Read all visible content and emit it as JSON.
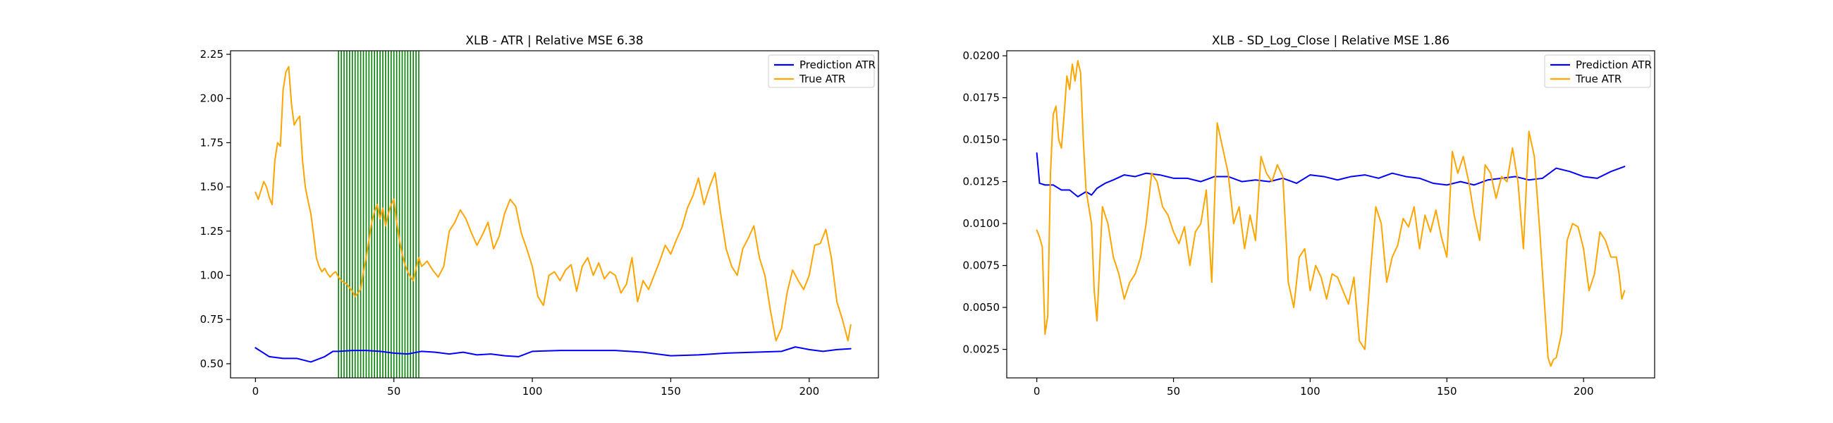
{
  "chart_data": [
    {
      "type": "line",
      "title": "XLB - ATR | Relative MSE 6.38",
      "xlabel": "",
      "ylabel": "",
      "xlim": [
        -9,
        225
      ],
      "ylim": [
        0.42,
        2.27
      ],
      "xticks": [
        0,
        50,
        100,
        150,
        200
      ],
      "xtick_labels": [
        "0",
        "50",
        "100",
        "150",
        "200"
      ],
      "yticks": [
        0.5,
        0.75,
        1.0,
        1.25,
        1.5,
        1.75,
        2.0,
        2.25
      ],
      "ytick_labels": [
        "0.50",
        "0.75",
        "1.00",
        "1.25",
        "1.50",
        "1.75",
        "2.00",
        "2.25"
      ],
      "grid": false,
      "legend_position": "top-right",
      "highlight_vlines": {
        "color": "#008000",
        "x_start": 30,
        "x_end": 59,
        "step": 1
      },
      "series": [
        {
          "name": "Prediction ATR",
          "color": "#0000ff",
          "x": [
            0,
            5,
            10,
            15,
            20,
            25,
            28,
            30,
            35,
            40,
            45,
            50,
            55,
            60,
            65,
            70,
            75,
            80,
            85,
            90,
            95,
            100,
            110,
            120,
            130,
            140,
            150,
            160,
            170,
            180,
            190,
            195,
            200,
            205,
            210,
            215
          ],
          "y": [
            0.59,
            0.54,
            0.53,
            0.53,
            0.51,
            0.54,
            0.57,
            0.57,
            0.575,
            0.575,
            0.57,
            0.56,
            0.555,
            0.57,
            0.565,
            0.555,
            0.565,
            0.55,
            0.555,
            0.545,
            0.54,
            0.57,
            0.575,
            0.575,
            0.575,
            0.565,
            0.545,
            0.55,
            0.56,
            0.565,
            0.57,
            0.595,
            0.58,
            0.57,
            0.58,
            0.585
          ]
        },
        {
          "name": "True ATR",
          "color": "#ffa500",
          "x": [
            0,
            1,
            2,
            3,
            4,
            5,
            6,
            7,
            8,
            9,
            10,
            11,
            12,
            13,
            14,
            15,
            16,
            17,
            18,
            19,
            20,
            21,
            22,
            23,
            24,
            25,
            26,
            27,
            28,
            29,
            30,
            31,
            32,
            33,
            34,
            35,
            36,
            37,
            38,
            39,
            40,
            41,
            42,
            43,
            44,
            45,
            46,
            47,
            48,
            49,
            50,
            51,
            52,
            53,
            54,
            55,
            56,
            57,
            58,
            59,
            60,
            62,
            64,
            66,
            68,
            70,
            72,
            74,
            76,
            78,
            80,
            82,
            84,
            86,
            88,
            90,
            92,
            94,
            96,
            98,
            100,
            102,
            104,
            106,
            108,
            110,
            112,
            114,
            116,
            118,
            120,
            122,
            124,
            126,
            128,
            130,
            132,
            134,
            136,
            138,
            140,
            142,
            144,
            146,
            148,
            150,
            152,
            154,
            156,
            158,
            160,
            162,
            164,
            166,
            168,
            170,
            172,
            174,
            176,
            178,
            180,
            182,
            184,
            186,
            188,
            190,
            192,
            194,
            196,
            198,
            200,
            202,
            204,
            206,
            208,
            210,
            212,
            214,
            215
          ],
          "y": [
            1.47,
            1.43,
            1.48,
            1.53,
            1.5,
            1.44,
            1.4,
            1.65,
            1.75,
            1.73,
            2.05,
            2.15,
            2.18,
            1.97,
            1.85,
            1.88,
            1.9,
            1.65,
            1.5,
            1.42,
            1.35,
            1.23,
            1.1,
            1.05,
            1.02,
            1.04,
            1.01,
            0.99,
            1.01,
            1.02,
            0.99,
            0.97,
            0.96,
            0.95,
            0.93,
            0.91,
            0.88,
            0.9,
            0.92,
            1.02,
            1.1,
            1.2,
            1.3,
            1.36,
            1.4,
            1.32,
            1.38,
            1.28,
            1.35,
            1.4,
            1.43,
            1.3,
            1.2,
            1.12,
            1.06,
            1.02,
            0.99,
            0.97,
            1.04,
            1.1,
            1.05,
            1.08,
            1.03,
            0.99,
            1.05,
            1.25,
            1.3,
            1.37,
            1.32,
            1.24,
            1.17,
            1.23,
            1.3,
            1.15,
            1.22,
            1.35,
            1.43,
            1.39,
            1.24,
            1.15,
            1.05,
            0.88,
            0.83,
            1.0,
            1.02,
            0.97,
            1.03,
            1.06,
            0.91,
            1.05,
            1.1,
            1.0,
            1.07,
            0.98,
            1.02,
            1.0,
            0.9,
            0.95,
            1.1,
            0.85,
            0.97,
            0.92,
            1.0,
            1.08,
            1.17,
            1.12,
            1.2,
            1.27,
            1.38,
            1.45,
            1.55,
            1.4,
            1.5,
            1.58,
            1.35,
            1.15,
            1.05,
            1.0,
            1.15,
            1.21,
            1.28,
            1.1,
            1.0,
            0.8,
            0.63,
            0.7,
            0.9,
            1.03,
            0.97,
            0.92,
            1.0,
            1.17,
            1.18,
            1.26,
            1.1,
            0.85,
            0.75,
            0.63,
            0.72
          ]
        }
      ]
    },
    {
      "type": "line",
      "title": "XLB - SD_Log_Close | Relative MSE 1.86",
      "xlabel": "",
      "ylabel": "",
      "xlim": [
        -11,
        226
      ],
      "ylim": [
        0.0008,
        0.0203
      ],
      "xticks": [
        0,
        50,
        100,
        150,
        200
      ],
      "xtick_labels": [
        "0",
        "50",
        "100",
        "150",
        "200"
      ],
      "yticks": [
        0.0025,
        0.005,
        0.0075,
        0.01,
        0.0125,
        0.015,
        0.0175,
        0.02
      ],
      "ytick_labels": [
        "0.0025",
        "0.0050",
        "0.0075",
        "0.0100",
        "0.0125",
        "0.0150",
        "0.0175",
        "0.0200"
      ],
      "grid": false,
      "legend_position": "top-right",
      "series": [
        {
          "name": "Prediction ATR",
          "color": "#0000ff",
          "x": [
            0,
            1,
            3,
            6,
            9,
            12,
            15,
            18,
            20,
            22,
            25,
            28,
            32,
            36,
            40,
            45,
            50,
            55,
            60,
            65,
            70,
            75,
            80,
            85,
            90,
            95,
            100,
            105,
            110,
            115,
            120,
            125,
            130,
            135,
            140,
            145,
            150,
            155,
            160,
            165,
            170,
            175,
            180,
            185,
            190,
            195,
            200,
            205,
            210,
            215
          ],
          "y": [
            0.0142,
            0.0124,
            0.0123,
            0.0123,
            0.012,
            0.012,
            0.0116,
            0.0119,
            0.0117,
            0.0121,
            0.0124,
            0.0126,
            0.0129,
            0.0128,
            0.013,
            0.0129,
            0.0127,
            0.0127,
            0.0125,
            0.0128,
            0.0128,
            0.0125,
            0.0126,
            0.0125,
            0.0127,
            0.0124,
            0.0129,
            0.0128,
            0.0126,
            0.0128,
            0.0129,
            0.0127,
            0.013,
            0.0128,
            0.0127,
            0.0124,
            0.0123,
            0.0125,
            0.0123,
            0.0126,
            0.0127,
            0.0128,
            0.0126,
            0.0127,
            0.0133,
            0.0131,
            0.0128,
            0.0127,
            0.0131,
            0.0134
          ]
        },
        {
          "name": "True ATR",
          "color": "#ffa500",
          "x": [
            0,
            1,
            2,
            3,
            4,
            5,
            6,
            7,
            8,
            9,
            10,
            11,
            12,
            13,
            14,
            15,
            16,
            17,
            18,
            19,
            20,
            21,
            22,
            24,
            26,
            28,
            30,
            32,
            34,
            36,
            38,
            40,
            42,
            44,
            46,
            48,
            50,
            52,
            54,
            56,
            58,
            60,
            62,
            64,
            66,
            68,
            70,
            72,
            74,
            76,
            78,
            80,
            82,
            84,
            86,
            88,
            90,
            92,
            94,
            96,
            98,
            100,
            102,
            104,
            106,
            108,
            110,
            112,
            114,
            116,
            118,
            120,
            122,
            124,
            126,
            128,
            130,
            132,
            134,
            136,
            138,
            140,
            142,
            144,
            146,
            148,
            150,
            152,
            154,
            156,
            158,
            160,
            162,
            164,
            166,
            168,
            170,
            172,
            174,
            176,
            178,
            180,
            182,
            184,
            186,
            187,
            188,
            189,
            190,
            192,
            194,
            196,
            198,
            200,
            202,
            204,
            206,
            208,
            210,
            212,
            213,
            214,
            215
          ],
          "y": [
            0.0096,
            0.0092,
            0.0086,
            0.0034,
            0.0045,
            0.013,
            0.0165,
            0.017,
            0.015,
            0.0145,
            0.0165,
            0.0188,
            0.018,
            0.0195,
            0.0185,
            0.0197,
            0.019,
            0.015,
            0.012,
            0.011,
            0.01,
            0.006,
            0.0042,
            0.011,
            0.01,
            0.008,
            0.007,
            0.0055,
            0.0065,
            0.007,
            0.008,
            0.01,
            0.013,
            0.0125,
            0.011,
            0.0105,
            0.0095,
            0.0088,
            0.0098,
            0.0075,
            0.0095,
            0.01,
            0.012,
            0.0065,
            0.016,
            0.0145,
            0.013,
            0.01,
            0.011,
            0.0085,
            0.0105,
            0.009,
            0.014,
            0.013,
            0.0125,
            0.0135,
            0.0128,
            0.0065,
            0.005,
            0.008,
            0.0085,
            0.006,
            0.0075,
            0.0068,
            0.0055,
            0.007,
            0.0068,
            0.006,
            0.0052,
            0.0068,
            0.003,
            0.0025,
            0.007,
            0.011,
            0.01,
            0.0065,
            0.008,
            0.0087,
            0.0103,
            0.0098,
            0.011,
            0.0085,
            0.0105,
            0.0095,
            0.0108,
            0.0092,
            0.008,
            0.0143,
            0.013,
            0.014,
            0.0125,
            0.0105,
            0.009,
            0.0135,
            0.013,
            0.0115,
            0.0128,
            0.0125,
            0.0145,
            0.0125,
            0.0085,
            0.0155,
            0.014,
            0.0095,
            0.0045,
            0.002,
            0.0015,
            0.0019,
            0.002,
            0.0035,
            0.009,
            0.01,
            0.0098,
            0.0085,
            0.006,
            0.007,
            0.0095,
            0.009,
            0.008,
            0.008,
            0.007,
            0.0055,
            0.006
          ]
        }
      ]
    }
  ]
}
